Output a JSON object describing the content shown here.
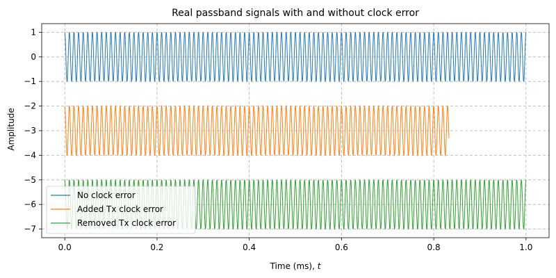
{
  "chart_data": {
    "type": "line",
    "title": "Real passband signals with and without clock error",
    "xlabel": "Time (ms), ",
    "xlabel_var": "t",
    "ylabel": "Amplitude",
    "xlim": [
      -0.05,
      1.05
    ],
    "ylim": [
      -7.35,
      1.35
    ],
    "xticks": [
      0,
      0.2,
      0.4,
      0.6,
      0.8,
      1
    ],
    "xtick_labels": [
      "0.0",
      "0.2",
      "0.4",
      "0.6",
      "0.8",
      "1.0"
    ],
    "yticks": [
      1,
      0,
      -1,
      -2,
      -3,
      -4,
      -5,
      -6,
      -7
    ],
    "ytick_labels": [
      "1",
      "0",
      "−1",
      "−2",
      "−3",
      "−4",
      "−5",
      "−6",
      "−7"
    ],
    "grid": true,
    "legend_position": "lower-left",
    "series": [
      {
        "name": "No clock error",
        "color": "#1f77b4",
        "offset": 0,
        "amplitude": 1,
        "t_end": 1.0,
        "cycles": 100
      },
      {
        "name": "Added Tx clock error",
        "color": "#ff7f0e",
        "offset": -3,
        "amplitude": 1,
        "t_end": 0.833,
        "cycles": 100
      },
      {
        "name": "Removed Tx clock error",
        "color": "#2ca02c",
        "offset": -6,
        "amplitude": 1,
        "t_end": 1.0,
        "cycles": 100
      }
    ]
  }
}
